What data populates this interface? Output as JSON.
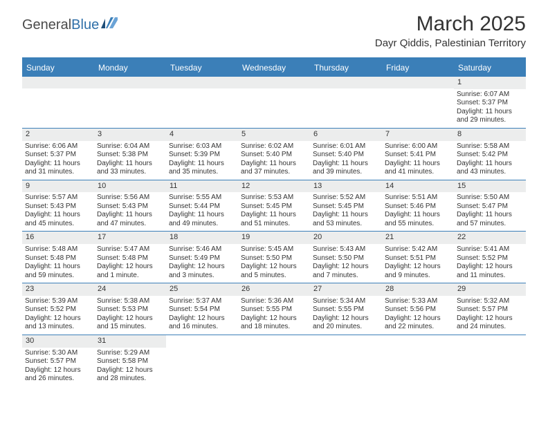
{
  "logo": {
    "text1": "General",
    "text2": "Blue"
  },
  "title": "March 2025",
  "location": "Dayr Qiddis, Palestinian Territory",
  "weekdays": [
    "Sunday",
    "Monday",
    "Tuesday",
    "Wednesday",
    "Thursday",
    "Friday",
    "Saturday"
  ],
  "colors": {
    "header_bar": "#3b7fb8",
    "daynum_bg": "#eceded",
    "text": "#333333"
  },
  "weeks": [
    [
      {
        "n": "",
        "sr": "",
        "ss": "",
        "dl": ""
      },
      {
        "n": "",
        "sr": "",
        "ss": "",
        "dl": ""
      },
      {
        "n": "",
        "sr": "",
        "ss": "",
        "dl": ""
      },
      {
        "n": "",
        "sr": "",
        "ss": "",
        "dl": ""
      },
      {
        "n": "",
        "sr": "",
        "ss": "",
        "dl": ""
      },
      {
        "n": "",
        "sr": "",
        "ss": "",
        "dl": ""
      },
      {
        "n": "1",
        "sr": "Sunrise: 6:07 AM",
        "ss": "Sunset: 5:37 PM",
        "dl": "Daylight: 11 hours and 29 minutes."
      }
    ],
    [
      {
        "n": "2",
        "sr": "Sunrise: 6:06 AM",
        "ss": "Sunset: 5:37 PM",
        "dl": "Daylight: 11 hours and 31 minutes."
      },
      {
        "n": "3",
        "sr": "Sunrise: 6:04 AM",
        "ss": "Sunset: 5:38 PM",
        "dl": "Daylight: 11 hours and 33 minutes."
      },
      {
        "n": "4",
        "sr": "Sunrise: 6:03 AM",
        "ss": "Sunset: 5:39 PM",
        "dl": "Daylight: 11 hours and 35 minutes."
      },
      {
        "n": "5",
        "sr": "Sunrise: 6:02 AM",
        "ss": "Sunset: 5:40 PM",
        "dl": "Daylight: 11 hours and 37 minutes."
      },
      {
        "n": "6",
        "sr": "Sunrise: 6:01 AM",
        "ss": "Sunset: 5:40 PM",
        "dl": "Daylight: 11 hours and 39 minutes."
      },
      {
        "n": "7",
        "sr": "Sunrise: 6:00 AM",
        "ss": "Sunset: 5:41 PM",
        "dl": "Daylight: 11 hours and 41 minutes."
      },
      {
        "n": "8",
        "sr": "Sunrise: 5:58 AM",
        "ss": "Sunset: 5:42 PM",
        "dl": "Daylight: 11 hours and 43 minutes."
      }
    ],
    [
      {
        "n": "9",
        "sr": "Sunrise: 5:57 AM",
        "ss": "Sunset: 5:43 PM",
        "dl": "Daylight: 11 hours and 45 minutes."
      },
      {
        "n": "10",
        "sr": "Sunrise: 5:56 AM",
        "ss": "Sunset: 5:43 PM",
        "dl": "Daylight: 11 hours and 47 minutes."
      },
      {
        "n": "11",
        "sr": "Sunrise: 5:55 AM",
        "ss": "Sunset: 5:44 PM",
        "dl": "Daylight: 11 hours and 49 minutes."
      },
      {
        "n": "12",
        "sr": "Sunrise: 5:53 AM",
        "ss": "Sunset: 5:45 PM",
        "dl": "Daylight: 11 hours and 51 minutes."
      },
      {
        "n": "13",
        "sr": "Sunrise: 5:52 AM",
        "ss": "Sunset: 5:45 PM",
        "dl": "Daylight: 11 hours and 53 minutes."
      },
      {
        "n": "14",
        "sr": "Sunrise: 5:51 AM",
        "ss": "Sunset: 5:46 PM",
        "dl": "Daylight: 11 hours and 55 minutes."
      },
      {
        "n": "15",
        "sr": "Sunrise: 5:50 AM",
        "ss": "Sunset: 5:47 PM",
        "dl": "Daylight: 11 hours and 57 minutes."
      }
    ],
    [
      {
        "n": "16",
        "sr": "Sunrise: 5:48 AM",
        "ss": "Sunset: 5:48 PM",
        "dl": "Daylight: 11 hours and 59 minutes."
      },
      {
        "n": "17",
        "sr": "Sunrise: 5:47 AM",
        "ss": "Sunset: 5:48 PM",
        "dl": "Daylight: 12 hours and 1 minute."
      },
      {
        "n": "18",
        "sr": "Sunrise: 5:46 AM",
        "ss": "Sunset: 5:49 PM",
        "dl": "Daylight: 12 hours and 3 minutes."
      },
      {
        "n": "19",
        "sr": "Sunrise: 5:45 AM",
        "ss": "Sunset: 5:50 PM",
        "dl": "Daylight: 12 hours and 5 minutes."
      },
      {
        "n": "20",
        "sr": "Sunrise: 5:43 AM",
        "ss": "Sunset: 5:50 PM",
        "dl": "Daylight: 12 hours and 7 minutes."
      },
      {
        "n": "21",
        "sr": "Sunrise: 5:42 AM",
        "ss": "Sunset: 5:51 PM",
        "dl": "Daylight: 12 hours and 9 minutes."
      },
      {
        "n": "22",
        "sr": "Sunrise: 5:41 AM",
        "ss": "Sunset: 5:52 PM",
        "dl": "Daylight: 12 hours and 11 minutes."
      }
    ],
    [
      {
        "n": "23",
        "sr": "Sunrise: 5:39 AM",
        "ss": "Sunset: 5:52 PM",
        "dl": "Daylight: 12 hours and 13 minutes."
      },
      {
        "n": "24",
        "sr": "Sunrise: 5:38 AM",
        "ss": "Sunset: 5:53 PM",
        "dl": "Daylight: 12 hours and 15 minutes."
      },
      {
        "n": "25",
        "sr": "Sunrise: 5:37 AM",
        "ss": "Sunset: 5:54 PM",
        "dl": "Daylight: 12 hours and 16 minutes."
      },
      {
        "n": "26",
        "sr": "Sunrise: 5:36 AM",
        "ss": "Sunset: 5:55 PM",
        "dl": "Daylight: 12 hours and 18 minutes."
      },
      {
        "n": "27",
        "sr": "Sunrise: 5:34 AM",
        "ss": "Sunset: 5:55 PM",
        "dl": "Daylight: 12 hours and 20 minutes."
      },
      {
        "n": "28",
        "sr": "Sunrise: 5:33 AM",
        "ss": "Sunset: 5:56 PM",
        "dl": "Daylight: 12 hours and 22 minutes."
      },
      {
        "n": "29",
        "sr": "Sunrise: 5:32 AM",
        "ss": "Sunset: 5:57 PM",
        "dl": "Daylight: 12 hours and 24 minutes."
      }
    ],
    [
      {
        "n": "30",
        "sr": "Sunrise: 5:30 AM",
        "ss": "Sunset: 5:57 PM",
        "dl": "Daylight: 12 hours and 26 minutes."
      },
      {
        "n": "31",
        "sr": "Sunrise: 5:29 AM",
        "ss": "Sunset: 5:58 PM",
        "dl": "Daylight: 12 hours and 28 minutes."
      },
      {
        "n": "",
        "sr": "",
        "ss": "",
        "dl": ""
      },
      {
        "n": "",
        "sr": "",
        "ss": "",
        "dl": ""
      },
      {
        "n": "",
        "sr": "",
        "ss": "",
        "dl": ""
      },
      {
        "n": "",
        "sr": "",
        "ss": "",
        "dl": ""
      },
      {
        "n": "",
        "sr": "",
        "ss": "",
        "dl": ""
      }
    ]
  ]
}
